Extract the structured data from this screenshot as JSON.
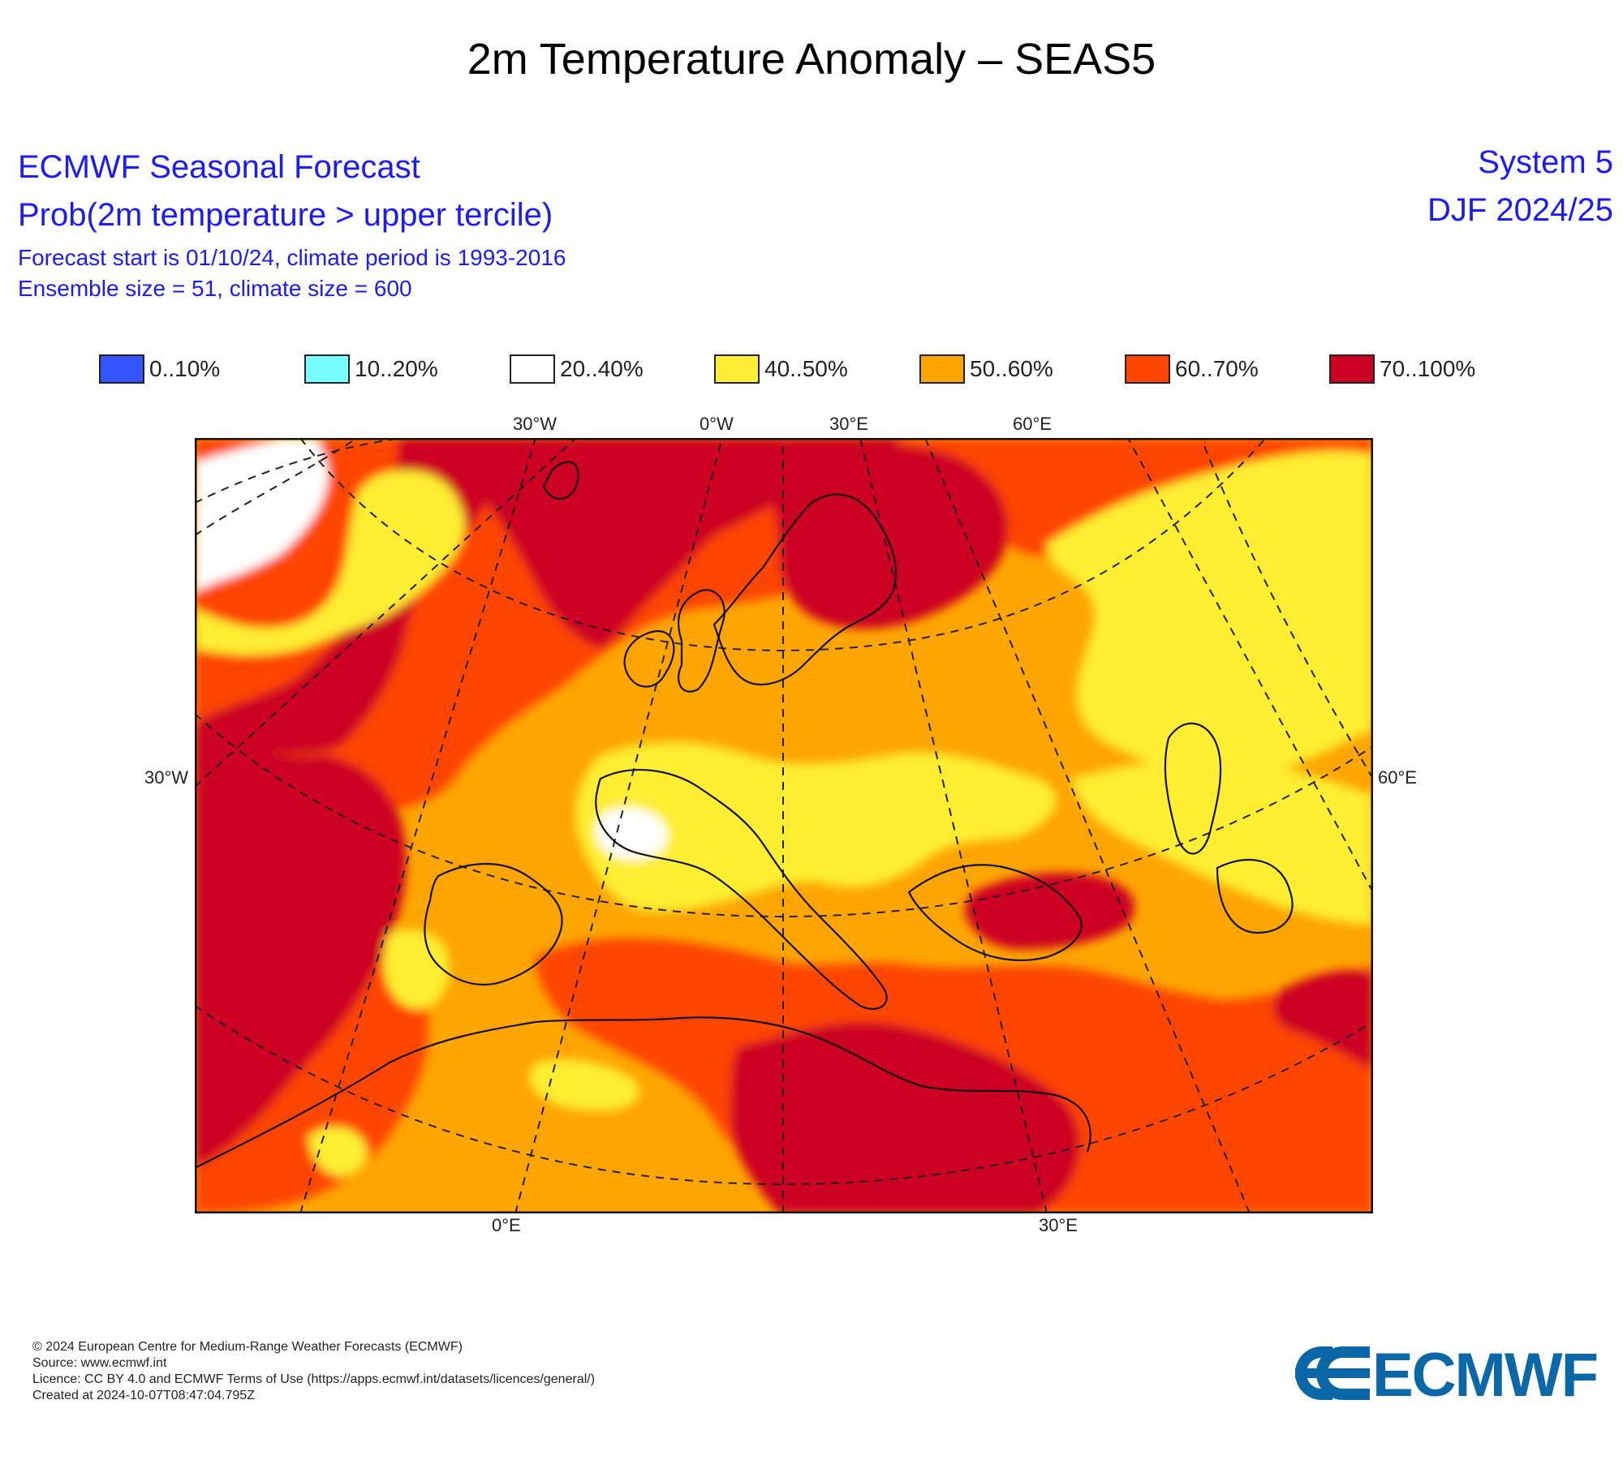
{
  "title": "2m Temperature Anomaly – SEAS5",
  "header": {
    "org_product": "ECMWF Seasonal Forecast",
    "variable": "Prob(2m temperature > upper tercile)",
    "forecast_info": "Forecast start is 01/10/24, climate period is 1993-2016",
    "ensemble_info": "Ensemble size = 51, climate size = 600",
    "system": "System 5",
    "season": "DJF 2024/25"
  },
  "legend": [
    {
      "label": "0..10%",
      "color": "#3355ff"
    },
    {
      "label": "10..20%",
      "color": "#77ffff"
    },
    {
      "label": "20..40%",
      "color": "#ffffff"
    },
    {
      "label": "40..50%",
      "color": "#ffee33"
    },
    {
      "label": "50..60%",
      "color": "#ffa500"
    },
    {
      "label": "60..70%",
      "color": "#ff4500"
    },
    {
      "label": "70..100%",
      "color": "#cc0022"
    }
  ],
  "ticks": {
    "top": [
      "30°W",
      "0°W",
      "30°E",
      "60°E"
    ],
    "left": "30°W",
    "right": "60°E",
    "bottom": [
      "0°E",
      "30°E"
    ]
  },
  "footer": {
    "copyright": "© 2024 European Centre for Medium-Range Weather Forecasts (ECMWF)",
    "source": "Source: www.ecmwf.int",
    "licence": "Licence: CC BY 4.0 and ECMWF Terms of Use (https://apps.ecmwf.int/datasets/licences/general/)",
    "created": "Created at 2024-10-07T08:47:04.795Z"
  },
  "logo": {
    "text": "ECMWF",
    "color": "#0b68a8"
  }
}
